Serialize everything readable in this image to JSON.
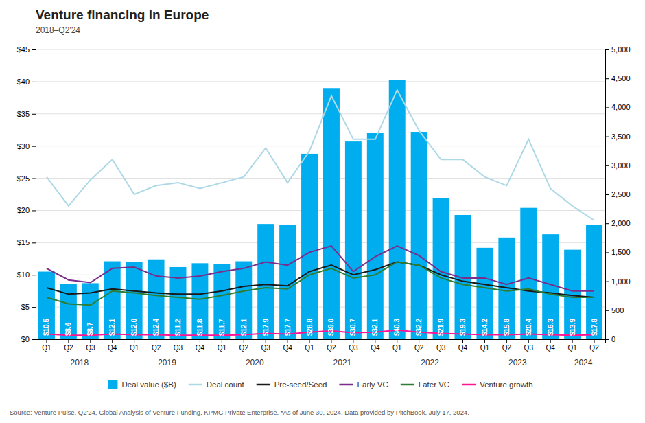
{
  "chart_data": {
    "type": "bar",
    "title": "Venture financing in Europe",
    "subtitle": "2018–Q2'24",
    "annotations": [
      "Source: Venture Pulse, Q2'24, Global Analysis of Venture Funding, KPMG Private Enterprise. *As of June 30, 2024. Data provided by PitchBook, July 17, 2024."
    ],
    "categories": [
      "Q1",
      "Q2",
      "Q3",
      "Q4",
      "Q1",
      "Q2",
      "Q3",
      "Q4",
      "Q1",
      "Q2",
      "Q3",
      "Q4",
      "Q1",
      "Q2",
      "Q3",
      "Q4",
      "Q1",
      "Q2",
      "Q3",
      "Q4",
      "Q1",
      "Q2",
      "Q3",
      "Q4",
      "Q1",
      "Q2"
    ],
    "year_labels": [
      "2018",
      "2019",
      "2020",
      "2021",
      "2022",
      "2023",
      "2024"
    ],
    "series": [
      {
        "name": "Deal value ($B)",
        "type": "bar",
        "color": "#00AEEF",
        "data_labels": true,
        "values": [
          10.5,
          8.6,
          8.7,
          12.1,
          12.0,
          12.4,
          11.2,
          11.8,
          11.7,
          12.1,
          17.9,
          17.7,
          28.8,
          39.0,
          30.7,
          32.1,
          40.3,
          32.2,
          21.9,
          19.3,
          14.2,
          15.8,
          20.4,
          16.3,
          13.9,
          17.8
        ],
        "value_labels": [
          "$10.5",
          "$8.6",
          "$8.7",
          "$12.1",
          "$12.0",
          "$12.4",
          "$11.2",
          "$11.8",
          "$11.7",
          "$12.1",
          "$17.9",
          "$17.7",
          "$28.8",
          "$39.0",
          "$30.7",
          "$32.1",
          "$40.3",
          "$32.2",
          "$21.9",
          "$19.3",
          "$14.2",
          "$15.8",
          "$20.4",
          "$16.3",
          "$13.9",
          "$17.8"
        ]
      },
      {
        "name": "Deal count",
        "type": "line",
        "axis": "y2",
        "color": "#ADD8E6",
        "values": [
          2800,
          2300,
          2750,
          3100,
          2500,
          2650,
          2700,
          2600,
          2700,
          2800,
          3300,
          2700,
          3250,
          4200,
          3450,
          3450,
          4300,
          3600,
          3100,
          3100,
          2800,
          2650,
          3450,
          2600,
          2300,
          2050
        ]
      },
      {
        "name": "Pre-seed/Seed",
        "type": "line",
        "color": "#1a1a1a",
        "values": [
          8.0,
          7.0,
          7.2,
          7.8,
          7.5,
          7.2,
          7.0,
          7.0,
          7.5,
          8.2,
          8.5,
          8.3,
          10.5,
          11.5,
          10.0,
          10.8,
          12.0,
          11.5,
          10.0,
          9.0,
          8.5,
          8.0,
          7.5,
          7.2,
          6.8,
          6.5
        ]
      },
      {
        "name": "Early VC",
        "type": "line",
        "color": "#7B2D8B",
        "values": [
          11.0,
          9.2,
          8.8,
          11.0,
          11.2,
          9.8,
          9.5,
          9.8,
          10.5,
          11.0,
          12.0,
          11.5,
          13.5,
          14.5,
          10.5,
          12.8,
          14.5,
          13.0,
          10.5,
          9.5,
          9.5,
          8.5,
          9.5,
          8.5,
          7.5,
          7.5
        ]
      },
      {
        "name": "Later VC",
        "type": "line",
        "color": "#2E7D32",
        "values": [
          6.5,
          5.5,
          5.3,
          7.5,
          7.2,
          6.8,
          6.5,
          6.2,
          6.8,
          7.5,
          8.0,
          7.8,
          10.0,
          11.0,
          9.5,
          10.0,
          12.0,
          11.5,
          9.5,
          8.5,
          8.0,
          7.5,
          7.8,
          7.0,
          6.5,
          6.5
        ]
      },
      {
        "name": "Venture growth",
        "type": "line",
        "color": "#FF1493",
        "values": [
          0.8,
          0.6,
          0.6,
          0.8,
          0.7,
          0.7,
          0.6,
          0.6,
          0.6,
          0.7,
          0.9,
          0.8,
          1.1,
          1.3,
          1.0,
          1.1,
          1.4,
          1.1,
          0.9,
          0.8,
          0.7,
          0.7,
          0.8,
          0.7,
          0.6,
          0.7
        ]
      }
    ],
    "ylim": [
      0,
      45
    ],
    "yticks": [
      {
        "value": 0,
        "label": "$0"
      },
      {
        "value": 5,
        "label": "$5"
      },
      {
        "value": 10,
        "label": "$10"
      },
      {
        "value": 15,
        "label": "$15"
      },
      {
        "value": 20,
        "label": "$20"
      },
      {
        "value": 25,
        "label": "$25"
      },
      {
        "value": 30,
        "label": "$30"
      },
      {
        "value": 35,
        "label": "$35"
      },
      {
        "value": 40,
        "label": "$40"
      },
      {
        "value": 45,
        "label": "$45"
      }
    ],
    "y2lim": [
      0,
      5000
    ],
    "y2ticks": [
      0,
      500,
      {
        "value": 1000,
        "label": "1,000"
      },
      {
        "value": 1500,
        "label": "1,500"
      },
      {
        "value": 2000,
        "label": "2,000"
      },
      {
        "value": 2500,
        "label": "2,500"
      },
      {
        "value": 3000,
        "label": "3,000"
      },
      {
        "value": 3500,
        "label": "3,500"
      },
      {
        "value": 4000,
        "label": "4,000"
      },
      {
        "value": 4500,
        "label": "4,500"
      },
      {
        "value": 5000,
        "label": "5,000"
      }
    ],
    "grid": true,
    "legend": "bottom"
  }
}
